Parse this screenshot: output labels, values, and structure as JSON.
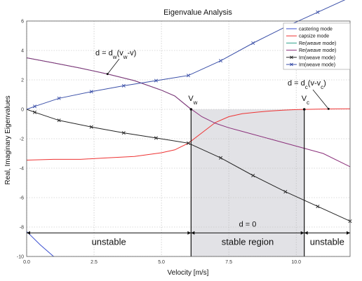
{
  "chart_data": {
    "type": "line",
    "title": "Eigenvalue Analysis",
    "xlabel": "Velocity [m/s]",
    "ylabel": "Real, Imaginary Eigenvalues",
    "xlim": [
      0,
      12
    ],
    "ylim": [
      -10,
      6
    ],
    "grid": true,
    "legend_position": "top-right",
    "x_ticks": [
      "0.0",
      "2.5",
      "5.0",
      "7.5",
      "10.0"
    ],
    "x_tick_values": [
      0,
      2.5,
      5,
      7.5,
      10
    ],
    "y_ticks": [
      "-10",
      "-8",
      "-6",
      "-4",
      "-2",
      "0",
      "2",
      "4",
      "6"
    ],
    "y_tick_values": [
      -10,
      -8,
      -6,
      -4,
      -2,
      0,
      2,
      4,
      6
    ],
    "series": [
      {
        "name": "castering mode",
        "color": "#3a4fd0",
        "marker": "none",
        "x": [
          0,
          0.5,
          1.0
        ],
        "y": [
          -8.3,
          -9.2,
          -10.0
        ]
      },
      {
        "name": "capsize mode",
        "color": "#ee3333",
        "marker": "none",
        "x": [
          0,
          1,
          2,
          3,
          4,
          5,
          5.5,
          6,
          6.5,
          7,
          7.5,
          8,
          8.5,
          9,
          9.5,
          10,
          10.5,
          11,
          11.5,
          12
        ],
        "y": [
          -3.45,
          -3.4,
          -3.4,
          -3.3,
          -3.2,
          -2.95,
          -2.75,
          -2.3,
          -1.6,
          -0.9,
          -0.5,
          -0.3,
          -0.2,
          -0.12,
          -0.06,
          -0.02,
          0.0,
          0.02,
          0.03,
          0.04
        ]
      },
      {
        "name": "Re(weave mode)",
        "color": "#2ea08a",
        "marker": "none",
        "x": [
          0,
          1,
          2,
          3,
          4,
          5,
          5.5,
          6,
          6.1
        ],
        "y": [
          3.5,
          3.15,
          2.8,
          2.4,
          1.95,
          1.3,
          0.9,
          0.15,
          0.0
        ]
      },
      {
        "name": "Re(weave mode)",
        "color": "#8a2f7a",
        "marker": "none",
        "x": [
          0,
          1,
          2,
          3,
          4,
          5,
          5.5,
          6,
          6.5,
          7,
          7.5,
          8,
          9,
          10,
          11,
          12
        ],
        "y": [
          3.5,
          3.15,
          2.8,
          2.4,
          1.95,
          1.3,
          0.9,
          0.15,
          -0.5,
          -0.95,
          -1.25,
          -1.5,
          -2.0,
          -2.5,
          -3.0,
          -3.9
        ]
      },
      {
        "name": "Im(weave mode)",
        "color": "#222222",
        "marker": "x",
        "x": [
          0,
          0.3,
          1.2,
          2.4,
          3.6,
          4.8,
          6.0,
          7.2,
          8.4,
          9.6,
          10.8,
          12.0
        ],
        "y": [
          0.0,
          -0.2,
          -0.75,
          -1.2,
          -1.6,
          -1.95,
          -2.3,
          -3.3,
          -4.5,
          -5.6,
          -6.6,
          -7.6
        ]
      },
      {
        "name": "Im(weave mode)",
        "color": "#3a4fa8",
        "marker": "x",
        "x": [
          0,
          0.3,
          1.2,
          2.4,
          3.6,
          4.8,
          6.0,
          7.2,
          8.4,
          9.6,
          10.8,
          12.0
        ],
        "y": [
          0.0,
          0.2,
          0.75,
          1.2,
          1.6,
          1.95,
          2.3,
          3.3,
          4.5,
          5.6,
          6.6,
          7.6
        ]
      }
    ],
    "shaded_region": {
      "x": [
        6.1,
        10.3
      ],
      "y": [
        -10,
        0
      ]
    },
    "vertical_lines": [
      {
        "label": "V",
        "sub": "w",
        "x": 6.1
      },
      {
        "label": "V",
        "sub": "c",
        "x": 10.3
      }
    ],
    "annotations": [
      {
        "text": "d = d",
        "sub": "w",
        "rest": "(v",
        "sub2": "w",
        "rest2": "-v)"
      },
      {
        "text": "d = d",
        "sub": "c",
        "rest": "(v-v",
        "sub2": "c",
        "rest2": ")"
      },
      {
        "text": "d = 0"
      }
    ],
    "regions": [
      {
        "label": "unstable"
      },
      {
        "label": "stable region"
      },
      {
        "label": "unstable"
      }
    ]
  }
}
